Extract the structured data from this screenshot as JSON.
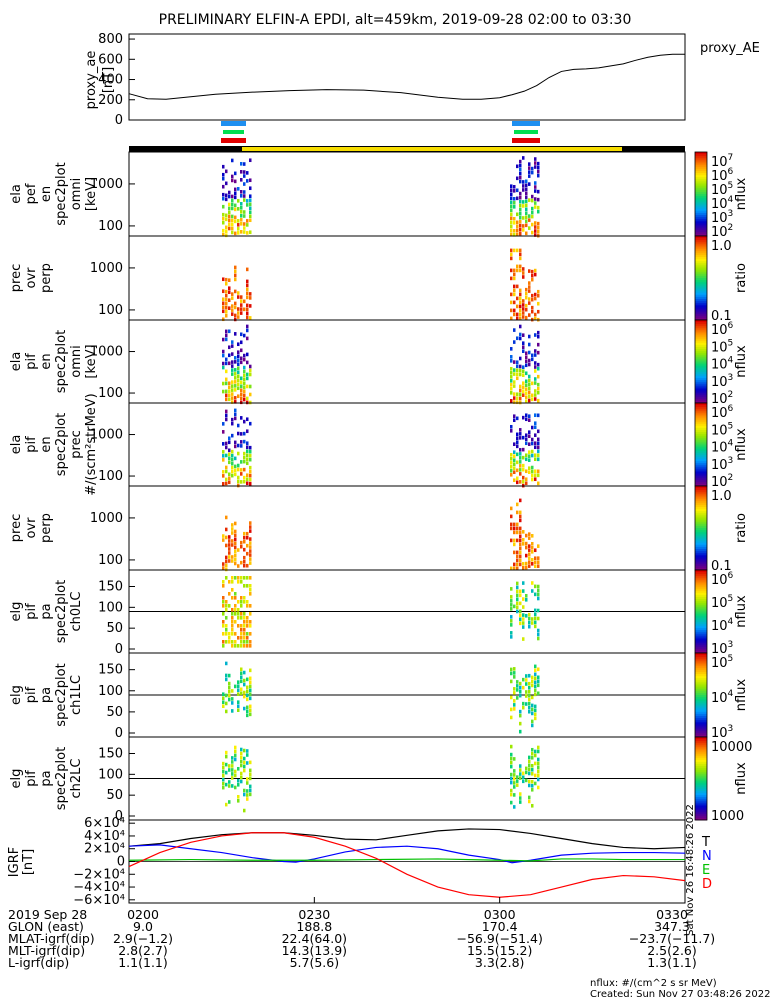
{
  "title": "PRELIMINARY ELFIN-A EPDI, alt=459km, 2019-09-28 02:00 to 03:30",
  "chart_data": [
    {
      "type": "line",
      "panel": "proxy_ae",
      "ylabel": "proxy_ae [nT]",
      "legend": "proxy_AE",
      "y_ticks": [
        "800",
        "600",
        "400",
        "200",
        "0"
      ],
      "ylim": [
        0,
        850
      ],
      "x_minutes": [
        0,
        3,
        6,
        10,
        14,
        20,
        26,
        32,
        38,
        44,
        50,
        54,
        57,
        60,
        62,
        64,
        66,
        68,
        70,
        72,
        74,
        76,
        78,
        80,
        82,
        84,
        86,
        88,
        90
      ],
      "values": [
        260,
        210,
        205,
        230,
        255,
        275,
        290,
        300,
        295,
        270,
        225,
        205,
        205,
        220,
        250,
        285,
        340,
        420,
        480,
        500,
        505,
        515,
        535,
        555,
        590,
        620,
        640,
        650,
        650
      ]
    },
    {
      "type": "heatmap",
      "panel": "elx_pef_en_spec2plot_omni",
      "ylabel": [
        "ela",
        "pef",
        "en",
        "spec2plot",
        "omni",
        "[keV]"
      ],
      "y_ticks": [
        "1000",
        "100"
      ],
      "colorbar_label": "nflux",
      "colorbar_ticks": [
        "10",
        "10",
        "10",
        "10",
        "10",
        "10"
      ],
      "colorbar_exps": [
        "7",
        "6",
        "5",
        "4",
        "3",
        "2"
      ]
    },
    {
      "type": "heatmap",
      "panel": "pef_prec_ovr_perp",
      "ylabel": [
        "prec",
        "ovr",
        "perp"
      ],
      "y_ticks": [
        "1000",
        "100"
      ],
      "colorbar_label": "ratio",
      "colorbar_ticks": [
        "1.0",
        "0.1"
      ]
    },
    {
      "type": "heatmap",
      "panel": "elx_pif_en_spec2plot_omni",
      "ylabel": [
        "ela",
        "pif",
        "en",
        "spec2plot",
        "omni",
        "[keV]"
      ],
      "y_ticks": [
        "1000",
        "100"
      ],
      "colorbar_label": "nflux",
      "colorbar_ticks": [
        "10",
        "10",
        "10",
        "10",
        "10"
      ],
      "colorbar_exps": [
        "6",
        "5",
        "4",
        "3",
        "2"
      ]
    },
    {
      "type": "heatmap",
      "panel": "elx_pif_en_spec2plot_prec",
      "ylabel": [
        "ela",
        "pif",
        "en",
        "spec2plot",
        "prec",
        "#/(scm²strMeV)"
      ],
      "y_ticks": [
        "1000",
        "100"
      ],
      "colorbar_label": "nflux",
      "colorbar_ticks": [
        "10",
        "10",
        "10",
        "10",
        "10"
      ],
      "colorbar_exps": [
        "6",
        "5",
        "4",
        "3",
        "2"
      ]
    },
    {
      "type": "heatmap",
      "panel": "pif_prec_ovr_perp",
      "ylabel": [
        "prec",
        "ovr",
        "perp"
      ],
      "y_ticks": [
        "1000",
        "100"
      ],
      "colorbar_label": "ratio",
      "colorbar_ticks": [
        "1.0",
        "0.1"
      ]
    },
    {
      "type": "heatmap",
      "panel": "elx_pif_pa_spec2plot_ch0LC",
      "ylabel": [
        "elg",
        "pif",
        "pa",
        "spec2plot",
        "ch0LC"
      ],
      "y_ticks": [
        "150",
        "100",
        "50",
        "0"
      ],
      "colorbar_label": "nflux",
      "colorbar_ticks": [
        "10",
        "10",
        "10",
        "10"
      ],
      "colorbar_exps": [
        "6",
        "5",
        "4",
        "3"
      ]
    },
    {
      "type": "heatmap",
      "panel": "elx_pif_pa_spec2plot_ch1LC",
      "ylabel": [
        "elg",
        "pif",
        "pa",
        "spec2plot",
        "ch1LC"
      ],
      "y_ticks": [
        "150",
        "100",
        "50",
        "0"
      ],
      "colorbar_label": "nflux",
      "colorbar_ticks": [
        "10",
        "10",
        "10"
      ],
      "colorbar_exps": [
        "5",
        "4",
        "3"
      ]
    },
    {
      "type": "heatmap",
      "panel": "elx_pif_pa_spec2plot_ch2LC",
      "ylabel": [
        "elg",
        "pif",
        "pa",
        "spec2plot",
        "ch2LC"
      ],
      "y_ticks": [
        "150",
        "100",
        "50",
        "0"
      ],
      "colorbar_label": "nflux",
      "colorbar_ticks": [
        "10000",
        "1000"
      ]
    },
    {
      "type": "line",
      "panel": "igrf",
      "ylabel": "IGRF [nT]",
      "y_ticks": [
        "6×10⁴",
        "4×10⁴",
        "2×10⁴",
        "0",
        "−2×10⁴",
        "−4×10⁴",
        "−6×10⁴"
      ],
      "ylim": [
        -65000,
        65000
      ],
      "legend": [
        "T",
        "N",
        "E",
        "D"
      ],
      "legend_colors": [
        "#000000",
        "#0000ff",
        "#00c000",
        "#ff0000"
      ],
      "side_stamp": "Sat Nov 26 16:48:26 2022",
      "series": [
        {
          "name": "T",
          "color": "#000000",
          "x": [
            0,
            5,
            10,
            15,
            20,
            25,
            30,
            35,
            40,
            45,
            50,
            55,
            60,
            65,
            70,
            75,
            80,
            85,
            90
          ],
          "values": [
            24000,
            28000,
            36000,
            42000,
            45000,
            45000,
            41000,
            35000,
            34000,
            41000,
            48000,
            51000,
            50000,
            44000,
            36000,
            28000,
            22000,
            20000,
            22000
          ]
        },
        {
          "name": "N",
          "color": "#0000ff",
          "x": [
            0,
            5,
            10,
            15,
            20,
            25,
            27,
            30,
            35,
            40,
            45,
            50,
            55,
            60,
            62,
            65,
            70,
            75,
            80,
            85,
            90
          ],
          "values": [
            24000,
            26000,
            20000,
            14000,
            6000,
            0,
            -1000,
            4000,
            15000,
            22000,
            24000,
            20000,
            10000,
            3000,
            -2000,
            2000,
            10000,
            13000,
            14000,
            14000,
            13000
          ]
        },
        {
          "name": "E",
          "color": "#00c000",
          "x": [
            0,
            10,
            20,
            30,
            40,
            50,
            60,
            65,
            70,
            75,
            80,
            90
          ],
          "values": [
            2000,
            3000,
            2000,
            2000,
            3000,
            4000,
            2000,
            1000,
            4000,
            4000,
            3000,
            3000
          ]
        },
        {
          "name": "D",
          "color": "#ff0000",
          "x": [
            0,
            5,
            10,
            15,
            20,
            25,
            30,
            35,
            40,
            45,
            50,
            55,
            60,
            65,
            70,
            75,
            80,
            85,
            90
          ],
          "values": [
            -8000,
            14000,
            30000,
            40000,
            45000,
            45000,
            38000,
            24000,
            5000,
            -20000,
            -40000,
            -52000,
            -56000,
            -52000,
            -40000,
            -28000,
            -22000,
            -24000,
            -30000
          ]
        }
      ]
    }
  ],
  "axis": {
    "x_tick_labels": [
      "0200",
      "0230",
      "0300",
      "0330"
    ],
    "x_tick_minutes": [
      0,
      30,
      60,
      90
    ],
    "rows": [
      {
        "label": "2019 Sep 28",
        "values": [
          "0200",
          "0230",
          "0300",
          "0330"
        ]
      },
      {
        "label": "GLON (east)",
        "values": [
          "9.0",
          "188.8",
          "170.4",
          "347.3"
        ]
      },
      {
        "label": "MLAT-igrf(dip)",
        "values": [
          "2.9(−1.2)",
          "22.4(64.0)",
          "−56.9(−51.4)",
          "−23.7(−11.7)"
        ]
      },
      {
        "label": "MLT-igrf(dip)",
        "values": [
          "2.8(2.7)",
          "14.3(13.9)",
          "15.5(15.2)",
          "2.5(2.6)"
        ]
      },
      {
        "label": "L-igrf(dip)",
        "values": [
          "1.1(1.1)",
          "5.7(5.6)",
          "3.3(2.8)",
          "1.3(1.1)"
        ]
      }
    ]
  },
  "footer": {
    "units": "nflux: #/(cm^2 s sr MeV)",
    "created": "Created: Sun Nov 27 03:48:26 2022"
  }
}
